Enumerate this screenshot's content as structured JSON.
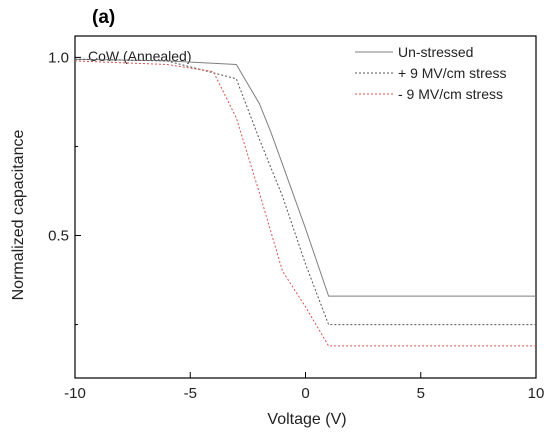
{
  "chart_data": {
    "type": "line",
    "panel_label": "(a)",
    "annotation": "CoW (Annealed)",
    "xlabel": "Voltage (V)",
    "ylabel": "Normalized capacitance",
    "xlim": [
      -10,
      10
    ],
    "ylim": [
      0.1,
      1.06
    ],
    "xticks": [
      -10,
      -5,
      0,
      5,
      10
    ],
    "xtick_labels": [
      "-10",
      "-5",
      "0",
      "5",
      "10"
    ],
    "yticks": [
      1.0,
      0.5
    ],
    "ytick_labels": [
      "1.0",
      "0.5"
    ],
    "minor_yticks": [
      0.75,
      0.25
    ],
    "grid": false,
    "legend_position": "top-right",
    "series": [
      {
        "name": "Un-stressed",
        "color": "#7f7f7f",
        "dash": "solid",
        "x": [
          -10,
          -6,
          -3,
          -2,
          -1.5,
          -1,
          0,
          1,
          10
        ],
        "y": [
          0.995,
          0.99,
          0.98,
          0.87,
          0.79,
          0.7,
          0.52,
          0.33,
          0.33
        ]
      },
      {
        "name": "+ 9 MV/cm stress",
        "color": "#555555",
        "dash": "dotted",
        "x": [
          -10,
          -6,
          -3,
          -2,
          -1,
          0,
          1,
          10
        ],
        "y": [
          0.995,
          0.99,
          0.94,
          0.77,
          0.61,
          0.42,
          0.25,
          0.25
        ]
      },
      {
        "name": "- 9 MV/cm stress",
        "color": "#d9534f",
        "dash": "dotted",
        "x": [
          -10,
          -6,
          -4,
          -3,
          -2,
          -1,
          0,
          1,
          10
        ],
        "y": [
          0.99,
          0.98,
          0.96,
          0.83,
          0.62,
          0.4,
          0.3,
          0.19,
          0.19
        ]
      }
    ]
  }
}
